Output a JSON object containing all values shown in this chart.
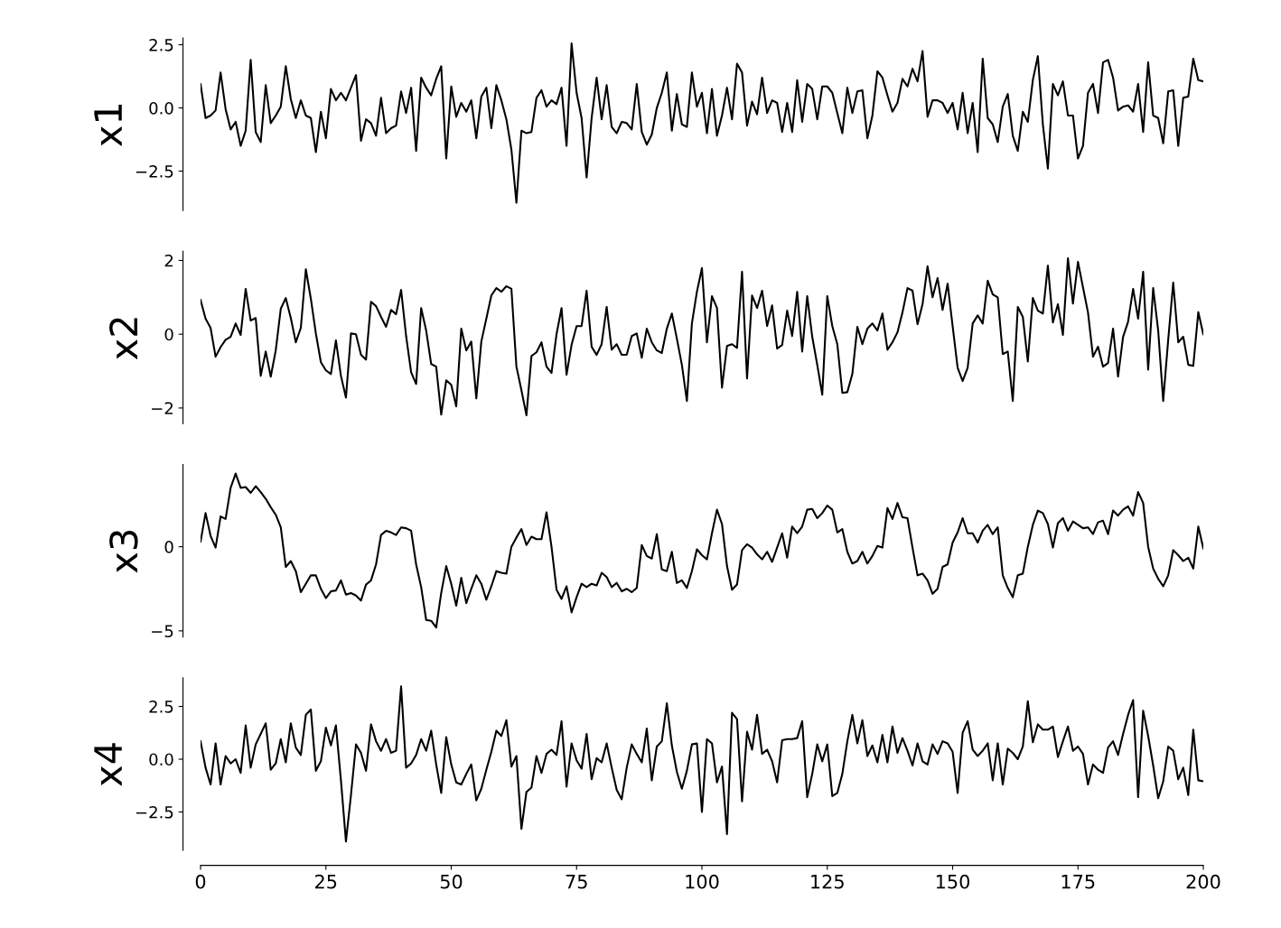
{
  "chart_data": [
    {
      "type": "line",
      "ylabel": "x1",
      "color": "#000000",
      "xlim": [
        0,
        200
      ],
      "ylim": [
        -4.06,
        2.77
      ],
      "yticks": [
        {
          "value": 2.5,
          "label": "2.5"
        },
        {
          "value": 0,
          "label": "0.0"
        },
        {
          "value": -2.5,
          "label": "−2.5"
        }
      ],
      "tick_labels": "y",
      "x": [
        0,
        1,
        2,
        3,
        4,
        5,
        6,
        7,
        8,
        9,
        10,
        11,
        12,
        13,
        14,
        15,
        16,
        17,
        18,
        19,
        20,
        21,
        22,
        23,
        24,
        25,
        26,
        27,
        28,
        29,
        30,
        31,
        32,
        33,
        34,
        35,
        36,
        37,
        38,
        39,
        40,
        41,
        42,
        43,
        44,
        45,
        46,
        47,
        48,
        49,
        50,
        51,
        52,
        53,
        54,
        55,
        56,
        57,
        58,
        59,
        60,
        61,
        62,
        63,
        64,
        65,
        66,
        67,
        68,
        69,
        70,
        71,
        72,
        73,
        74,
        75,
        76,
        77,
        78,
        79,
        80,
        81,
        82,
        83,
        84,
        85,
        86,
        87,
        88,
        89,
        90,
        91,
        92,
        93,
        94,
        95,
        96,
        97,
        98,
        99,
        100,
        101,
        102,
        103,
        104,
        105,
        106,
        107,
        108,
        109,
        110,
        111,
        112,
        113,
        114,
        115,
        116,
        117,
        118,
        119,
        120,
        121,
        122,
        123,
        124,
        125,
        126,
        127,
        128,
        129,
        130,
        131,
        132,
        133,
        134,
        135,
        136,
        137,
        138,
        139,
        140,
        141,
        142,
        143,
        144,
        145,
        146,
        147,
        148,
        149,
        150,
        151,
        152,
        153,
        154,
        155,
        156,
        157,
        158,
        159,
        160,
        161,
        162,
        163,
        164,
        165,
        166,
        167,
        168,
        169,
        170,
        171,
        172,
        173,
        174,
        175,
        176,
        177,
        178,
        179,
        180,
        181,
        182,
        183,
        184,
        185,
        186,
        187,
        188,
        189,
        190,
        191,
        192,
        193,
        194,
        195,
        196,
        197,
        198,
        199,
        200
      ],
      "values": [
        0.94,
        -0.4,
        -0.3,
        -0.1,
        1.4,
        -0.05,
        -0.85,
        -0.55,
        -1.5,
        -0.9,
        1.9,
        -0.95,
        -1.35,
        0.9,
        -0.6,
        -0.3,
        0.05,
        1.65,
        0.35,
        -0.4,
        0.3,
        -0.3,
        -0.4,
        -1.75,
        -0.15,
        -1.2,
        0.75,
        0.3,
        0.6,
        0.3,
        0.8,
        1.3,
        -1.3,
        -0.45,
        -0.6,
        -1.1,
        0.4,
        -1.0,
        -0.8,
        -0.7,
        0.65,
        -0.2,
        0.8,
        -1.7,
        1.2,
        0.8,
        0.5,
        1.15,
        1.65,
        -2.0,
        0.85,
        -0.35,
        0.2,
        -0.15,
        0.3,
        -1.2,
        0.45,
        0.8,
        -0.8,
        0.9,
        0.3,
        -0.45,
        -1.65,
        -3.75,
        -0.9,
        -1.0,
        -0.95,
        0.4,
        0.7,
        0.05,
        0.3,
        0.15,
        0.8,
        -1.5,
        2.55,
        0.6,
        -0.4,
        -2.75,
        -0.4,
        1.2,
        -0.45,
        0.9,
        -0.75,
        -1.0,
        -0.55,
        -0.6,
        -0.85,
        0.95,
        -0.95,
        -1.45,
        -1.05,
        0,
        0.6,
        1.4,
        -0.9,
        0.55,
        -0.65,
        -0.75,
        1.4,
        0.05,
        0.6,
        -1.0,
        0.75,
        -1.1,
        -0.3,
        0.8,
        -0.45,
        1.75,
        1.4,
        -0.7,
        0.25,
        -0.25,
        1.2,
        -0.2,
        0.3,
        0.2,
        -0.95,
        0.2,
        -0.95,
        1.1,
        -0.55,
        0.95,
        0.75,
        -0.45,
        0.85,
        0.85,
        0.6,
        -0.2,
        -1.0,
        0.8,
        -0.2,
        0.65,
        0.7,
        -1.2,
        -0.3,
        1.45,
        1.2,
        0.5,
        -0.15,
        0.2,
        1.15,
        0.85,
        1.55,
        1.05,
        2.25,
        -0.35,
        0.3,
        0.3,
        0.2,
        -0.2,
        0.2,
        -0.85,
        0.6,
        -1.0,
        0.2,
        -1.75,
        1.95,
        -0.4,
        -0.65,
        -1.35,
        0.05,
        0.55,
        -1.1,
        -1.7,
        -0.15,
        -0.55,
        1.1,
        2.05,
        -0.65,
        -2.4,
        0.95,
        0.5,
        1.05,
        -0.3,
        -0.3,
        -2.0,
        -1.5,
        0.6,
        0.95,
        -0.2,
        1.8,
        1.9,
        1.2,
        -0.1,
        0.05,
        0.1,
        -0.15,
        0.95,
        -0.95,
        1.8,
        -0.3,
        -0.4,
        -1.4,
        0.65,
        0.7,
        -1.5,
        0.4,
        0.45,
        1.95,
        1.1,
        1.05
      ]
    },
    {
      "type": "line",
      "ylabel": "x2",
      "color": "#000000",
      "xlim": [
        0,
        200
      ],
      "ylim": [
        -2.43,
        2.25
      ],
      "yticks": [
        {
          "value": 2,
          "label": "2"
        },
        {
          "value": 0,
          "label": "0"
        },
        {
          "value": -2,
          "label": "−2"
        }
      ],
      "tick_labels": "y",
      "x": [
        0,
        1,
        2,
        3,
        4,
        5,
        6,
        7,
        8,
        9,
        10,
        11,
        12,
        13,
        14,
        15,
        16,
        17,
        18,
        19,
        20,
        21,
        22,
        23,
        24,
        25,
        26,
        27,
        28,
        29,
        30,
        31,
        32,
        33,
        34,
        35,
        36,
        37,
        38,
        39,
        40,
        41,
        42,
        43,
        44,
        45,
        46,
        47,
        48,
        49,
        50,
        51,
        52,
        53,
        54,
        55,
        56,
        57,
        58,
        59,
        60,
        61,
        62,
        63,
        64,
        65,
        66,
        67,
        68,
        69,
        70,
        71,
        72,
        73,
        74,
        75,
        76,
        77,
        78,
        79,
        80,
        81,
        82,
        83,
        84,
        85,
        86,
        87,
        88,
        89,
        90,
        91,
        92,
        93,
        94,
        95,
        96,
        97,
        98,
        99,
        100,
        101,
        102,
        103,
        104,
        105,
        106,
        107,
        108,
        109,
        110,
        111,
        112,
        113,
        114,
        115,
        116,
        117,
        118,
        119,
        120,
        121,
        122,
        123,
        124,
        125,
        126,
        127,
        128,
        129,
        130,
        131,
        132,
        133,
        134,
        135,
        136,
        137,
        138,
        139,
        140,
        141,
        142,
        143,
        144,
        145,
        146,
        147,
        148,
        149,
        150,
        151,
        152,
        153,
        154,
        155,
        156,
        157,
        158,
        159,
        160,
        161,
        162,
        163,
        164,
        165,
        166,
        167,
        168,
        169,
        170,
        171,
        172,
        173,
        174,
        175,
        176,
        177,
        178,
        179,
        180,
        181,
        182,
        183,
        184,
        185,
        186,
        187,
        188,
        189,
        190,
        191,
        192,
        193,
        194,
        195,
        196,
        197,
        198,
        199,
        200
      ],
      "values": [
        0.93,
        0.42,
        0.17,
        -0.61,
        -0.35,
        -0.15,
        -0.07,
        0.29,
        -0.02,
        1.23,
        0.37,
        0.44,
        -1.13,
        -0.47,
        -1.15,
        -0.44,
        0.69,
        0.98,
        0.44,
        -0.22,
        0.17,
        1.76,
        0.96,
        0.02,
        -0.76,
        -0.98,
        -1.08,
        -0.17,
        -1.13,
        -1.72,
        0.02,
        0,
        -0.56,
        -0.69,
        0.88,
        0.76,
        0.47,
        0.2,
        0.66,
        0.54,
        1.2,
        -0.05,
        -1.03,
        -1.35,
        0.71,
        0.1,
        -0.81,
        -0.88,
        -2.18,
        -1.25,
        -1.37,
        -1.96,
        0.15,
        -0.44,
        -0.2,
        -1.74,
        -0.2,
        0.42,
        1.05,
        1.25,
        1.15,
        1.3,
        1.23,
        -0.88,
        -1.52,
        -2.2,
        -0.59,
        -0.49,
        -0.22,
        -0.88,
        -1.05,
        0,
        0.71,
        -1.1,
        -0.29,
        0.22,
        0.22,
        1.18,
        -0.34,
        -0.56,
        -0.27,
        0.74,
        -0.42,
        -0.27,
        -0.56,
        -0.56,
        -0.05,
        0.02,
        -0.64,
        0.15,
        -0.22,
        -0.44,
        -0.51,
        0.15,
        0.56,
        -0.12,
        -0.83,
        -1.81,
        0.29,
        1.15,
        1.79,
        -0.22,
        1.03,
        0.71,
        -1.45,
        -0.32,
        -0.27,
        -0.37,
        1.69,
        -1.2,
        1.05,
        0.71,
        1.18,
        0.22,
        0.78,
        -0.39,
        -0.29,
        0.64,
        -0.05,
        1.15,
        -0.47,
        1.03,
        -0.07,
        -0.83,
        -1.64,
        1.03,
        0.22,
        -0.27,
        -1.59,
        -1.57,
        -1.08,
        0.2,
        -0.27,
        0.15,
        0.29,
        0.1,
        0.56,
        -0.42,
        -0.22,
        0.05,
        0.59,
        1.25,
        1.18,
        0.27,
        0.81,
        1.84,
        1.0,
        1.52,
        0.66,
        1.37,
        0.22,
        -0.91,
        -1.27,
        -0.91,
        0.29,
        0.51,
        0.29,
        1.45,
        1.08,
        1.0,
        -0.54,
        -0.47,
        -1.81,
        0.74,
        0.47,
        -0.74,
        0.98,
        0.64,
        0.56,
        1.86,
        0.32,
        0.81,
        -0.02,
        2.06,
        0.83,
        1.96,
        1.27,
        0.59,
        -0.61,
        -0.34,
        -0.88,
        -0.78,
        0.15,
        -1.15,
        -0.07,
        0.34,
        1.23,
        0.42,
        1.69,
        -0.96,
        1.25,
        0.1,
        -1.81,
        -0.15,
        1.4,
        -0.22,
        -0.07,
        -0.83,
        -0.86,
        0.6,
        0
      ]
    },
    {
      "type": "line",
      "ylabel": "x3",
      "color": "#000000",
      "xlim": [
        0,
        200
      ],
      "ylim": [
        -5.37,
        4.89
      ],
      "yticks": [
        {
          "value": 0,
          "label": "0"
        },
        {
          "value": -5,
          "label": "−5"
        }
      ],
      "tick_labels": "y",
      "x": [
        0,
        1,
        2,
        3,
        4,
        5,
        6,
        7,
        8,
        9,
        10,
        11,
        12,
        13,
        14,
        15,
        16,
        17,
        18,
        19,
        20,
        21,
        22,
        23,
        24,
        25,
        26,
        27,
        28,
        29,
        30,
        31,
        32,
        33,
        34,
        35,
        36,
        37,
        38,
        39,
        40,
        41,
        42,
        43,
        44,
        45,
        46,
        47,
        48,
        49,
        50,
        51,
        52,
        53,
        54,
        55,
        56,
        57,
        58,
        59,
        60,
        61,
        62,
        63,
        64,
        65,
        66,
        67,
        68,
        69,
        70,
        71,
        72,
        73,
        74,
        75,
        76,
        77,
        78,
        79,
        80,
        81,
        82,
        83,
        84,
        85,
        86,
        87,
        88,
        89,
        90,
        91,
        92,
        93,
        94,
        95,
        96,
        97,
        98,
        99,
        100,
        101,
        102,
        103,
        104,
        105,
        106,
        107,
        108,
        109,
        110,
        111,
        112,
        113,
        114,
        115,
        116,
        117,
        118,
        119,
        120,
        121,
        122,
        123,
        124,
        125,
        126,
        127,
        128,
        129,
        130,
        131,
        132,
        133,
        134,
        135,
        136,
        137,
        138,
        139,
        140,
        141,
        142,
        143,
        144,
        145,
        146,
        147,
        148,
        149,
        150,
        151,
        152,
        153,
        154,
        155,
        156,
        157,
        158,
        159,
        160,
        161,
        162,
        163,
        164,
        165,
        166,
        167,
        168,
        169,
        170,
        171,
        172,
        173,
        174,
        175,
        176,
        177,
        178,
        179,
        180,
        181,
        182,
        183,
        184,
        185,
        186,
        187,
        188,
        189,
        190,
        191,
        192,
        193,
        194,
        195,
        196,
        197,
        198,
        199,
        200
      ],
      "values": [
        0.3,
        2.0,
        0.65,
        -0.05,
        1.8,
        1.65,
        3.5,
        4.35,
        3.5,
        3.55,
        3.2,
        3.6,
        3.25,
        2.85,
        2.35,
        1.9,
        1.15,
        -1.2,
        -0.85,
        -1.45,
        -2.7,
        -2.2,
        -1.7,
        -1.7,
        -2.5,
        -3.05,
        -2.65,
        -2.6,
        -2.0,
        -2.85,
        -2.75,
        -2.9,
        -3.2,
        -2.25,
        -2.0,
        -1.05,
        0.7,
        0.95,
        0.85,
        0.7,
        1.15,
        1.1,
        0.95,
        -1.05,
        -2.4,
        -4.35,
        -4.4,
        -4.8,
        -2.75,
        -1.15,
        -2.2,
        -3.5,
        -1.85,
        -3.35,
        -2.5,
        -1.7,
        -2.2,
        -3.15,
        -2.35,
        -1.45,
        -1.55,
        -1.6,
        0,
        0.55,
        1.05,
        0.1,
        0.6,
        0.45,
        0.45,
        2.05,
        0,
        -2.55,
        -3.1,
        -2.35,
        -3.9,
        -3.0,
        -2.2,
        -2.4,
        -2.2,
        -2.3,
        -1.55,
        -1.8,
        -2.4,
        -2.15,
        -2.65,
        -2.5,
        -2.7,
        -2.45,
        0.1,
        -0.55,
        -0.7,
        0.75,
        -1.35,
        -1.45,
        -0.3,
        -2.15,
        -2.0,
        -2.45,
        -1.45,
        -0.15,
        -0.5,
        -0.75,
        0.8,
        2.2,
        1.35,
        -1.15,
        -2.55,
        -2.25,
        -0.2,
        0.15,
        -0.05,
        -0.45,
        -0.75,
        -0.3,
        -0.9,
        -0.05,
        0.8,
        -0.65,
        1.2,
        0.8,
        1.2,
        2.2,
        2.25,
        1.7,
        2.0,
        2.45,
        2.2,
        0.85,
        1.05,
        -0.3,
        -1.0,
        -0.85,
        -0.3,
        -1.0,
        -0.55,
        0.05,
        -0.05,
        2.3,
        1.65,
        2.6,
        1.75,
        1.7,
        -0.05,
        -1.7,
        -1.6,
        -2.0,
        -2.8,
        -2.5,
        -1.2,
        -1.05,
        0.25,
        0.85,
        1.7,
        0.8,
        0.8,
        0.25,
        0.95,
        1.3,
        0.75,
        1.15,
        -1.7,
        -2.45,
        -3.0,
        -1.7,
        -1.6,
        0,
        1.3,
        2.15,
        2.0,
        1.35,
        -0.05,
        1.4,
        1.7,
        0.95,
        1.5,
        1.3,
        1.1,
        1.15,
        0.75,
        1.45,
        1.55,
        0.75,
        2.15,
        1.85,
        2.2,
        2.4,
        1.85,
        3.25,
        2.6,
        0,
        -1.3,
        -1.9,
        -2.35,
        -1.7,
        -0.2,
        -0.5,
        -0.85,
        -0.65,
        -1.3,
        1.2,
        -0.1
      ]
    },
    {
      "type": "line",
      "ylabel": "x4",
      "color": "#000000",
      "xlim": [
        0,
        200
      ],
      "ylim": [
        -4.32,
        3.86
      ],
      "yticks": [
        {
          "value": 2.5,
          "label": "2.5"
        },
        {
          "value": 0,
          "label": "0.0"
        },
        {
          "value": -2.5,
          "label": "−2.5"
        }
      ],
      "xticks": [
        0,
        25,
        50,
        75,
        100,
        125,
        150,
        175,
        200
      ],
      "x": [
        0,
        1,
        2,
        3,
        4,
        5,
        6,
        7,
        8,
        9,
        10,
        11,
        12,
        13,
        14,
        15,
        16,
        17,
        18,
        19,
        20,
        21,
        22,
        23,
        24,
        25,
        26,
        27,
        28,
        29,
        30,
        31,
        32,
        33,
        34,
        35,
        36,
        37,
        38,
        39,
        40,
        41,
        42,
        43,
        44,
        45,
        46,
        47,
        48,
        49,
        50,
        51,
        52,
        53,
        54,
        55,
        56,
        57,
        58,
        59,
        60,
        61,
        62,
        63,
        64,
        65,
        66,
        67,
        68,
        69,
        70,
        71,
        72,
        73,
        74,
        75,
        76,
        77,
        78,
        79,
        80,
        81,
        82,
        83,
        84,
        85,
        86,
        87,
        88,
        89,
        90,
        91,
        92,
        93,
        94,
        95,
        96,
        97,
        98,
        99,
        100,
        101,
        102,
        103,
        104,
        105,
        106,
        107,
        108,
        109,
        110,
        111,
        112,
        113,
        114,
        115,
        116,
        117,
        118,
        119,
        120,
        121,
        122,
        123,
        124,
        125,
        126,
        127,
        128,
        129,
        130,
        131,
        132,
        133,
        134,
        135,
        136,
        137,
        138,
        139,
        140,
        141,
        142,
        143,
        144,
        145,
        146,
        147,
        148,
        149,
        150,
        151,
        152,
        153,
        154,
        155,
        156,
        157,
        158,
        159,
        160,
        161,
        162,
        163,
        164,
        165,
        166,
        167,
        168,
        169,
        170,
        171,
        172,
        173,
        174,
        175,
        176,
        177,
        178,
        179,
        180,
        181,
        182,
        183,
        184,
        185,
        186,
        187,
        188,
        189,
        190,
        191,
        192,
        193,
        194,
        195,
        196,
        197,
        198,
        199,
        200
      ],
      "values": [
        0.85,
        -0.4,
        -1.2,
        0.75,
        -1.2,
        0.15,
        -0.2,
        0,
        -0.65,
        1.6,
        -0.4,
        0.7,
        1.2,
        1.7,
        -0.5,
        -0.2,
        0.95,
        -0.15,
        1.7,
        0.55,
        0.2,
        2.1,
        2.35,
        -0.55,
        -0.1,
        1.5,
        0.65,
        1.6,
        -1.0,
        -3.9,
        -1.7,
        0.7,
        0.3,
        -0.55,
        1.65,
        0.85,
        0.4,
        0.95,
        0.3,
        0.4,
        3.45,
        -0.4,
        -0.2,
        0.2,
        0.95,
        0.4,
        1.35,
        -0.25,
        -1.6,
        1.05,
        -0.25,
        -1.1,
        -1.2,
        -0.7,
        -0.25,
        -1.95,
        -1.4,
        -0.5,
        0.35,
        1.35,
        1.1,
        1.85,
        -0.35,
        0.15,
        -3.3,
        -1.55,
        -1.35,
        0.15,
        -0.65,
        0.25,
        0.45,
        0.2,
        1.8,
        -1.3,
        0.75,
        -0.05,
        -0.45,
        1.2,
        -0.95,
        0.05,
        -0.15,
        0.75,
        -0.4,
        -1.45,
        -1.9,
        -0.4,
        0.7,
        0.25,
        -0.15,
        1.45,
        -1.0,
        0.6,
        0.85,
        2.65,
        0.65,
        -0.6,
        -1.4,
        -0.55,
        0.7,
        0.75,
        -2.5,
        0.95,
        0.75,
        -1.1,
        -0.35,
        -3.55,
        2.2,
        1.9,
        -2.0,
        1.3,
        0.45,
        2.1,
        0.25,
        0.45,
        -0.1,
        -1.1,
        0.9,
        0.95,
        0.95,
        1.0,
        1.8,
        -1.8,
        -0.7,
        0.7,
        -0.1,
        0.7,
        -1.75,
        -1.6,
        -0.7,
        0.85,
        2.1,
        0.75,
        1.85,
        0.15,
        0.65,
        -0.15,
        1.15,
        -0.15,
        1.55,
        0.3,
        1.0,
        0.4,
        -0.3,
        0.75,
        -0.1,
        -0.25,
        0.7,
        0.25,
        0.85,
        0.75,
        0.35,
        -1.6,
        1.25,
        1.8,
        0.45,
        0.15,
        0.4,
        0.75,
        -1.0,
        0.75,
        -1.2,
        0.5,
        0.3,
        0,
        0.6,
        2.75,
        0.8,
        1.65,
        1.4,
        1.4,
        1.55,
        0.1,
        0.85,
        1.55,
        0.4,
        0.6,
        0.25,
        -1.2,
        -0.25,
        -0.5,
        -0.65,
        0.55,
        0.85,
        0.2,
        1.2,
        2.1,
        2.8,
        -1.8,
        2.3,
        1.1,
        -0.3,
        -1.85,
        -1.05,
        0.6,
        0.4,
        -0.95,
        -0.4,
        -1.7,
        1.4,
        -1.0,
        -1.05
      ]
    }
  ]
}
